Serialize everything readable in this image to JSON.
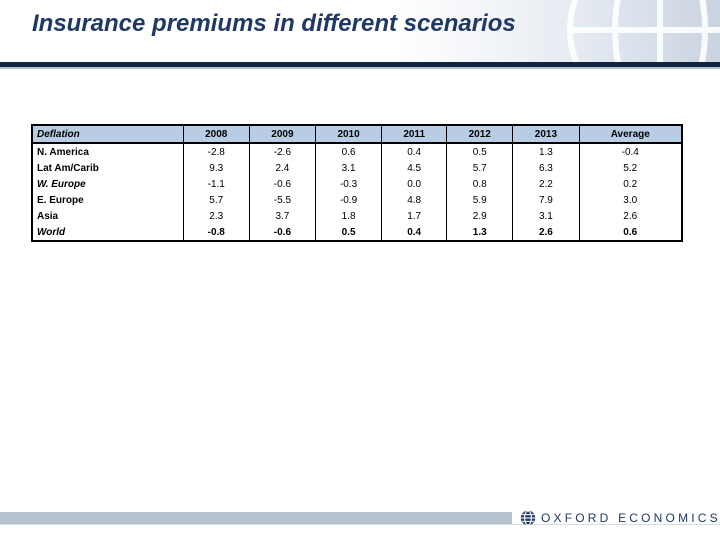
{
  "slide": {
    "title": "Insurance premiums in different scenarios"
  },
  "table": {
    "headers": [
      "Deflation",
      "2008",
      "2009",
      "2010",
      "2011",
      "2012",
      "2013",
      "Average"
    ],
    "rows": [
      {
        "label": "N. America",
        "values": [
          "-2.8",
          "-2.6",
          "0.6",
          "0.4",
          "0.5",
          "1.3",
          "-0.4"
        ],
        "italic": false,
        "bold": false
      },
      {
        "label": "Lat Am/Carib",
        "values": [
          "9.3",
          "2.4",
          "3.1",
          "4.5",
          "5.7",
          "6.3",
          "5.2"
        ],
        "italic": false,
        "bold": false
      },
      {
        "label": "W. Europe",
        "values": [
          "-1.1",
          "-0.6",
          "-0.3",
          "0.0",
          "0.8",
          "2.2",
          "0.2"
        ],
        "italic": true,
        "bold": false
      },
      {
        "label": "E. Europe",
        "values": [
          "5.7",
          "-5.5",
          "-0.9",
          "4.8",
          "5.9",
          "7.9",
          "3.0"
        ],
        "italic": false,
        "bold": false
      },
      {
        "label": "Asia",
        "values": [
          "2.3",
          "3.7",
          "1.8",
          "1.7",
          "2.9",
          "3.1",
          "2.6"
        ],
        "italic": false,
        "bold": false
      },
      {
        "label": "World",
        "values": [
          "-0.8",
          "-0.6",
          "0.5",
          "0.4",
          "1.3",
          "2.6",
          "0.6"
        ],
        "italic": true,
        "bold": true
      }
    ]
  },
  "footer": {
    "logo_text": "OXFORD ECONOMICS",
    "logo_icon": "globe-icon"
  },
  "colors": {
    "title": "#1f3864",
    "header_fill": "#b8cce4",
    "rule": "#10233f"
  }
}
